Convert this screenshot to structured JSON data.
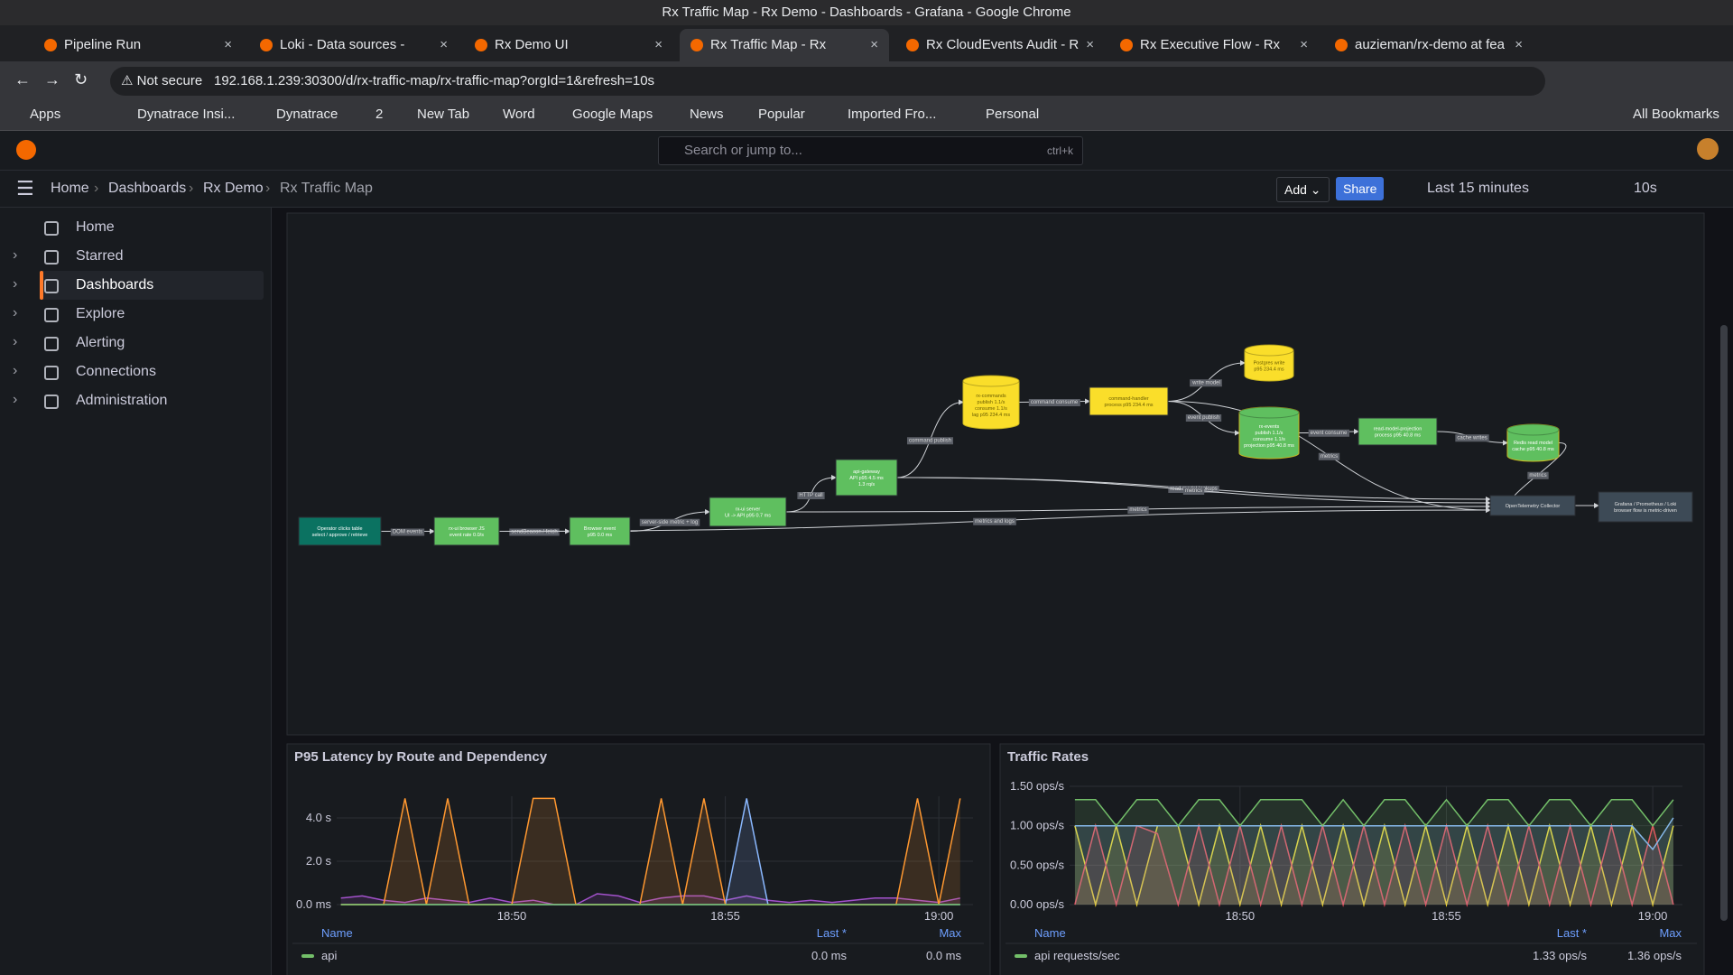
{
  "window_title": "Rx Traffic Map - Rx Demo - Dashboards - Grafana - Google Chrome",
  "tabs": [
    "Pipeline Run",
    "Loki - Data sources - Con",
    "Rx Demo UI",
    "Rx Traffic Map - Rx Demo",
    "Rx CloudEvents Audit - R",
    "Rx Executive Flow - Rx D",
    "auzieman/rx-demo at fea"
  ],
  "address": {
    "security": "Not secure",
    "url": "192.168.1.239:30300/d/rx-traffic-map/rx-traffic-map?orgId=1&refresh=10s"
  },
  "bookmarks": [
    "Apps",
    "Dynatrace Insi...",
    "Dynatrace",
    "2",
    "New Tab",
    "Word",
    "Google Maps",
    "News",
    "Popular",
    "Imported Fro...",
    "Personal",
    "All Bookmarks"
  ],
  "grafana": {
    "search": "Search or jump to...",
    "shortcut": "ctrl+k",
    "breadcrumbs": [
      "Home",
      "Dashboards",
      "Rx Demo",
      "Rx Traffic Map"
    ],
    "add": "Add",
    "share": "Share",
    "time_range": "Last 15 minutes",
    "refresh": "10s",
    "nav": [
      "Home",
      "Starred",
      "Dashboards",
      "Explore",
      "Alerting",
      "Connections",
      "Administration"
    ]
  },
  "diagram": {
    "nodes": [
      {
        "lines": [
          "Operator clicks table",
          "select / approve / retrieve"
        ]
      },
      {
        "lines": [
          "rx-ui browser JS",
          "event rate 0.0/s"
        ]
      },
      {
        "lines": [
          "Browser event",
          "p95 0.0 ms"
        ]
      },
      {
        "lines": [
          "rx-ui server",
          "UI -> API p95 0.7 ms"
        ]
      },
      {
        "lines": [
          "api-gateway",
          "API p95 4.5 ms",
          "1.3 rq/s"
        ]
      },
      {
        "lines": [
          "rx-commands",
          "publish 1.1/s",
          "consume 1.1/s",
          "lag p95 234.4 ms"
        ]
      },
      {
        "lines": [
          "command-handler",
          "process p95 234.4 ms"
        ]
      },
      {
        "lines": [
          "Postgres write",
          "p95 234.4 ms"
        ]
      },
      {
        "lines": [
          "rx-events",
          "publish 1.1/s",
          "consume 1.1/s",
          "projection p95 40.8 ms"
        ]
      },
      {
        "lines": [
          "read-model-projection",
          "process p95 40.8 ms"
        ]
      },
      {
        "lines": [
          "Redis read model",
          "cache p95 40.8 ms"
        ]
      },
      {
        "lines": [
          "OpenTelemetry Collector"
        ]
      },
      {
        "lines": [
          "Grafana / Prometheus / Loki",
          "browser flow is metric-driven"
        ]
      }
    ],
    "edges": [
      {
        "label": "DOM events"
      },
      {
        "label": "sendBeacon / fetch"
      },
      {
        "label": "server-side metric + log"
      },
      {
        "label": "HTTP call"
      },
      {
        "label": "command publish"
      },
      {
        "label": "command consume"
      },
      {
        "label": "write model"
      },
      {
        "label": "event publish"
      },
      {
        "label": "event consume"
      },
      {
        "label": "cache writes"
      },
      {
        "label": "metrics"
      },
      {
        "label": "metrics"
      },
      {
        "label": "read model lookups"
      },
      {
        "label": "metrics"
      },
      {
        "label": "metrics"
      },
      {
        "label": "metrics and logs"
      }
    ]
  },
  "chart_data": [
    {
      "type": "line",
      "title": "P95 Latency by Route and Dependency",
      "x": [
        1126,
        1126.5,
        1127,
        1127.5,
        1128,
        1128.5,
        1129,
        1129.5,
        1130,
        1130.5,
        1131,
        1131.5,
        1132,
        1132.5,
        1133,
        1133.5,
        1134,
        1134.5,
        1135,
        1135.5,
        1136,
        1136.5,
        1137,
        1137.5,
        1138,
        1138.5,
        1139,
        1139.5,
        1140,
        1140.5
      ],
      "xlim": [
        1125.9,
        1140.8
      ],
      "xticks": [
        {
          "value": 1130,
          "label": "18:50"
        },
        {
          "value": 1135,
          "label": "18:55"
        },
        {
          "value": 1140,
          "label": "19:00"
        }
      ],
      "ylim": [
        0,
        5
      ],
      "yticks": [
        {
          "value": 0,
          "label": "0.0 ms"
        },
        {
          "value": 2,
          "label": "2.0 s"
        },
        {
          "value": 4,
          "label": "4.0 s"
        }
      ],
      "grid": true,
      "series": [
        {
          "name": "api",
          "color": "#73bf69",
          "values": [
            0,
            0,
            0,
            0,
            0,
            0,
            0,
            0,
            0,
            0,
            0,
            0,
            0,
            0,
            0,
            0,
            0,
            0,
            0,
            0,
            0,
            0,
            0,
            0,
            0,
            0,
            0,
            0,
            0,
            0
          ]
        },
        {
          "color": "#ff9830",
          "values": [
            0,
            0,
            0,
            4.9,
            0,
            4.9,
            0,
            0,
            0,
            4.9,
            4.9,
            0,
            0,
            0,
            0,
            4.9,
            0,
            4.9,
            0,
            0,
            0,
            0,
            0,
            0,
            0,
            0,
            0,
            4.9,
            0,
            4.9
          ]
        },
        {
          "color": "#8ab8ff",
          "values": [
            0,
            0,
            0,
            0,
            0,
            0,
            0,
            0,
            0,
            0,
            0,
            0,
            0,
            0,
            0,
            0,
            0,
            0,
            0,
            4.9,
            0,
            0,
            0,
            0,
            0,
            0,
            0,
            0,
            0,
            0
          ]
        },
        {
          "color": "#a352cc",
          "values": [
            0.3,
            0.4,
            0.2,
            0.1,
            0.3,
            0.2,
            0.1,
            0.3,
            0.1,
            0.2,
            0,
            0,
            0.5,
            0.4,
            0.1,
            0.3,
            0.4,
            0.4,
            0.2,
            0.4,
            0.2,
            0.1,
            0.2,
            0.1,
            0.2,
            0.3,
            0.3,
            0.2,
            0.1,
            0.3
          ]
        }
      ],
      "legend": {
        "columns": [
          "Name",
          "Last *",
          "Max"
        ],
        "last": [
          "0.0 ms"
        ],
        "max": [
          "0.0 ms"
        ]
      }
    },
    {
      "type": "line",
      "title": "Traffic Rates",
      "x": [
        1126,
        1126.5,
        1127,
        1127.5,
        1128,
        1128.5,
        1129,
        1129.5,
        1130,
        1130.5,
        1131,
        1131.5,
        1132,
        1132.5,
        1133,
        1133.5,
        1134,
        1134.5,
        1135,
        1135.5,
        1136,
        1136.5,
        1137,
        1137.5,
        1138,
        1138.5,
        1139,
        1139.5,
        1140,
        1140.5
      ],
      "xlim": [
        1125.87,
        1140.72
      ],
      "xticks": [
        {
          "value": 1130,
          "label": "18:50"
        },
        {
          "value": 1135,
          "label": "18:55"
        },
        {
          "value": 1140,
          "label": "19:00"
        }
      ],
      "ylim": [
        0,
        1.5
      ],
      "yticks": [
        {
          "value": 0,
          "label": "0.00 ops/s"
        },
        {
          "value": 0.5,
          "label": "0.50 ops/s"
        },
        {
          "value": 1,
          "label": "1.00 ops/s"
        },
        {
          "value": 1.5,
          "label": "1.50 ops/s"
        }
      ],
      "grid": true,
      "series": [
        {
          "name": "api requests/sec",
          "color": "#73bf69",
          "values": [
            1.33,
            1.33,
            1.0,
            1.33,
            1.33,
            1.0,
            1.33,
            1.33,
            1.0,
            1.33,
            1.33,
            1.33,
            1.0,
            1.33,
            1.0,
            1.33,
            1.33,
            1.0,
            1.33,
            1.0,
            1.33,
            1.33,
            1.0,
            1.33,
            1.33,
            1.0,
            1.33,
            1.33,
            1.0,
            1.33
          ]
        },
        {
          "color": "#8ab8ff",
          "values": [
            1,
            1,
            1,
            1,
            1,
            1,
            1,
            1,
            1,
            1,
            1,
            1,
            1,
            1,
            1,
            1,
            1,
            1,
            1,
            1,
            1,
            1,
            1,
            1,
            1,
            1,
            1,
            1,
            0.7,
            1.1
          ]
        },
        {
          "color": "#f2495c",
          "values": [
            0,
            1.0,
            0,
            1.0,
            0.9,
            0,
            1.0,
            0,
            1.0,
            0,
            1.0,
            0,
            1.0,
            0,
            1.0,
            0,
            1.0,
            0,
            1.0,
            0,
            1.0,
            0,
            1.0,
            0,
            1.0,
            0,
            1.0,
            0,
            1.0,
            0
          ]
        },
        {
          "color": "#fade2a",
          "values": [
            1.0,
            0,
            1.0,
            0,
            1.0,
            1.0,
            0,
            1.0,
            0,
            1.0,
            0,
            1.0,
            0,
            1.0,
            0,
            1.0,
            0,
            1.0,
            0,
            1.0,
            0,
            1.0,
            0,
            1.0,
            0,
            1.0,
            0,
            1.0,
            0,
            1.0
          ]
        }
      ],
      "legend": {
        "columns": [
          "Name",
          "Last *",
          "Max"
        ],
        "last": [
          "1.33 ops/s"
        ],
        "max": [
          "1.36 ops/s"
        ]
      }
    }
  ]
}
